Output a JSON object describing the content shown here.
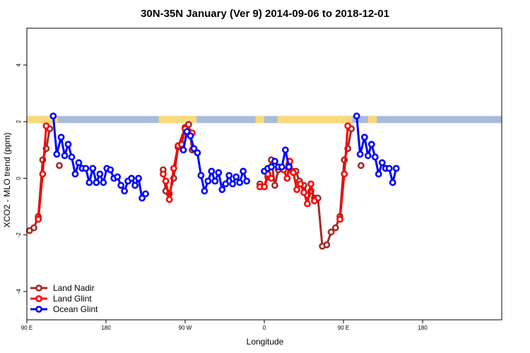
{
  "chart_data": {
    "type": "line",
    "title": "30N-35N January (Ver 9)   2014-09-06 to 2018-12-01",
    "xlabel": "Longitude",
    "ylabel": "XCO2 - MLO trend (ppm)",
    "xlim": [
      0,
      540
    ],
    "ylim": [
      -5,
      5.3
    ],
    "x_ticks": [
      {
        "value": 0,
        "label": "90 E"
      },
      {
        "value": 90,
        "label": "180"
      },
      {
        "value": 180,
        "label": "90 W"
      },
      {
        "value": 270,
        "label": "0"
      },
      {
        "value": 360,
        "label": "90 E"
      },
      {
        "value": 450,
        "label": "180"
      }
    ],
    "y_ticks": [
      {
        "value": -4,
        "label": "-4"
      },
      {
        "value": -2,
        "label": "-2"
      },
      {
        "value": 0,
        "label": "0"
      },
      {
        "value": 2,
        "label": "2"
      },
      {
        "value": 4,
        "label": "4"
      }
    ],
    "land_ocean_band": {
      "y_range": [
        1.95,
        2.2
      ],
      "land_color": "#fad97a",
      "ocean_color": "#a8bcd8",
      "land_segments": [
        [
          0,
          35
        ],
        [
          150,
          193
        ],
        [
          260,
          270
        ],
        [
          285,
          370
        ],
        [
          388,
          398
        ]
      ]
    },
    "legend_position": "bottom-left",
    "series": [
      {
        "name": "Land Nadir",
        "color": "#a52a2a",
        "segments": [
          [
            [
              3,
              -1.85
            ],
            [
              8,
              -1.75
            ],
            [
              13,
              -1.35
            ],
            [
              18,
              0.65
            ],
            [
              22,
              1.05
            ],
            [
              26,
              1.75
            ]
          ],
          [
            [
              37,
              0.45
            ]
          ],
          [
            [
              155,
              0.3
            ],
            [
              158,
              -0.45
            ],
            [
              162,
              -0.55
            ],
            [
              167,
              0.0
            ],
            [
              172,
              1.1
            ],
            [
              180,
              1.8
            ],
            [
              184,
              1.9
            ],
            [
              188,
              1.0
            ]
          ],
          [
            [
              265,
              -0.2
            ],
            [
              270,
              -0.3
            ],
            [
              274,
              0.05
            ],
            [
              278,
              0.65
            ],
            [
              282,
              -0.25
            ],
            [
              286,
              0.3
            ]
          ],
          [
            [
              298,
              0.5
            ],
            [
              302,
              0.25
            ],
            [
              306,
              0.25
            ],
            [
              310,
              -0.1
            ],
            [
              315,
              -0.25
            ],
            [
              319,
              -0.6
            ],
            [
              323,
              -0.45
            ],
            [
              327,
              -0.7
            ],
            [
              331,
              -0.7
            ],
            [
              336,
              -2.4
            ],
            [
              341,
              -2.35
            ],
            [
              346,
              -1.9
            ],
            [
              351,
              -1.75
            ],
            [
              356,
              -1.35
            ],
            [
              361,
              0.65
            ],
            [
              365,
              1.05
            ],
            [
              369,
              1.75
            ]
          ],
          [
            [
              380,
              0.45
            ]
          ]
        ]
      },
      {
        "name": "Land Glint",
        "color": "#ff0000",
        "segments": [
          [
            [
              13,
              -1.45
            ],
            [
              18,
              0.15
            ],
            [
              22,
              1.85
            ]
          ],
          [
            [
              155,
              0.15
            ],
            [
              158,
              -0.1
            ],
            [
              162,
              -0.75
            ],
            [
              167,
              0.35
            ],
            [
              172,
              1.15
            ],
            [
              176,
              1.2
            ],
            [
              180,
              1.75
            ],
            [
              184,
              1.65
            ],
            [
              188,
              1.6
            ]
          ],
          [
            [
              265,
              -0.3
            ],
            [
              270,
              -0.3
            ],
            [
              274,
              0.15
            ],
            [
              278,
              0.0
            ]
          ],
          [
            [
              292,
              0.3
            ],
            [
              296,
              0.0
            ],
            [
              299,
              0.6
            ],
            [
              303,
              0.2
            ],
            [
              307,
              -0.4
            ],
            [
              311,
              -0.2
            ],
            [
              315,
              -0.5
            ],
            [
              319,
              -0.9
            ],
            [
              323,
              -0.2
            ],
            [
              327,
              -0.8
            ]
          ],
          [
            [
              356,
              -1.45
            ],
            [
              361,
              0.15
            ],
            [
              365,
              1.85
            ]
          ]
        ]
      },
      {
        "name": "Ocean Glint",
        "color": "#0000ff",
        "segments": [
          [
            [
              30,
              2.2
            ],
            [
              34,
              0.85
            ],
            [
              39,
              1.45
            ],
            [
              43,
              0.8
            ],
            [
              47,
              1.2
            ],
            [
              51,
              0.75
            ],
            [
              55,
              0.15
            ],
            [
              59,
              0.55
            ],
            [
              63,
              0.35
            ],
            [
              67,
              0.35
            ],
            [
              71,
              -0.15
            ],
            [
              75,
              0.35
            ],
            [
              79,
              -0.15
            ],
            [
              83,
              0.15
            ],
            [
              87,
              -0.15
            ],
            [
              91,
              0.35
            ],
            [
              95,
              0.3
            ],
            [
              99,
              0.0
            ],
            [
              103,
              0.05
            ],
            [
              107,
              -0.25
            ],
            [
              111,
              -0.45
            ],
            [
              115,
              -0.1
            ],
            [
              119,
              0.0
            ],
            [
              123,
              -0.25
            ],
            [
              127,
              0.0
            ],
            [
              131,
              -0.7
            ],
            [
              135,
              -0.55
            ]
          ],
          [
            [
              178,
              1.0
            ],
            [
              182,
              1.65
            ],
            [
              186,
              1.5
            ],
            [
              190,
              1.05
            ],
            [
              194,
              0.9
            ],
            [
              198,
              0.1
            ],
            [
              202,
              -0.45
            ],
            [
              206,
              -0.1
            ],
            [
              210,
              0.25
            ],
            [
              214,
              -0.1
            ],
            [
              218,
              0.2
            ],
            [
              222,
              -0.4
            ],
            [
              226,
              -0.2
            ],
            [
              230,
              0.1
            ],
            [
              234,
              -0.2
            ],
            [
              238,
              0.05
            ],
            [
              242,
              -0.15
            ],
            [
              246,
              0.25
            ],
            [
              250,
              -0.1
            ]
          ],
          [
            [
              270,
              0.25
            ],
            [
              274,
              0.35
            ],
            [
              278,
              0.4
            ],
            [
              282,
              0.6
            ],
            [
              286,
              0.4
            ],
            [
              290,
              0.4
            ],
            [
              294,
              1.0
            ],
            [
              298,
              0.4
            ]
          ],
          [
            [
              375,
              2.2
            ],
            [
              379,
              0.85
            ],
            [
              384,
              1.45
            ],
            [
              388,
              0.8
            ],
            [
              392,
              1.2
            ],
            [
              396,
              0.75
            ],
            [
              400,
              0.15
            ],
            [
              404,
              0.55
            ],
            [
              408,
              0.35
            ],
            [
              412,
              0.35
            ],
            [
              416,
              -0.15
            ],
            [
              420,
              0.35
            ]
          ]
        ]
      }
    ]
  }
}
